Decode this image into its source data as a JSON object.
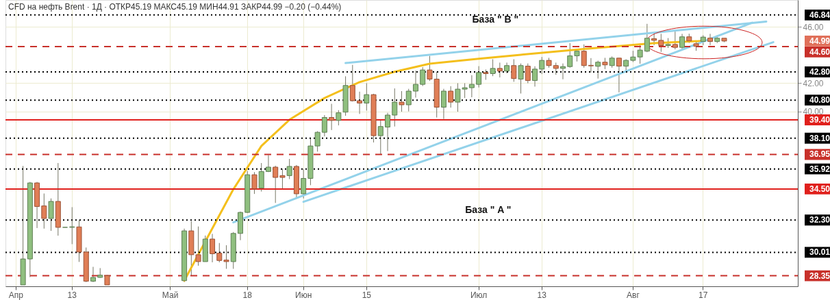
{
  "chart_data": {
    "type": "candlestick",
    "title": "CFD на нефть Brent · 1Д · ОТКР45.19 МАКС45.19 МИН44.91 ЗАКР44.99 −0.20 (−0.44%)",
    "categories": [
      "Апр",
      null,
      null,
      null,
      null,
      null,
      null,
      null,
      "13",
      null,
      null,
      null,
      null,
      null,
      null,
      null,
      null,
      null,
      null,
      null,
      null,
      null,
      "Май",
      null,
      null,
      null,
      null,
      null,
      null,
      null,
      null,
      null,
      null,
      "18",
      null,
      null,
      null,
      null,
      null,
      null,
      null,
      "Июн",
      null,
      null,
      null,
      null,
      null,
      null,
      null,
      null,
      "15",
      null,
      null,
      null,
      null,
      null,
      null,
      null,
      null,
      null,
      null,
      null,
      null,
      null,
      null,
      null,
      "Июл",
      null,
      null,
      null,
      null,
      null,
      null,
      null,
      null,
      "13",
      null,
      null,
      null,
      null,
      null,
      null,
      null,
      null,
      null,
      null,
      null,
      null,
      "Авг",
      null,
      null,
      null,
      null,
      null,
      null,
      null,
      null,
      null,
      "17",
      null,
      null,
      null,
      null,
      null,
      null,
      null,
      null,
      null,
      null,
      null,
      null
    ],
    "ohlc": [
      null,
      [
        27.7,
        36.13,
        27.7,
        29.54
      ],
      [
        29.54,
        35.0,
        28.25,
        34.93
      ],
      [
        34.93,
        35.0,
        31.73,
        33.26
      ],
      [
        33.3,
        34.18,
        31.69,
        32.41
      ],
      [
        32.41,
        33.83,
        31.53,
        33.62
      ],
      [
        33.62,
        36.34,
        31.19,
        31.78
      ],
      [
        31.78,
        31.78,
        31.78,
        31.78
      ],
      [
        31.78,
        33.21,
        30.59,
        31.82
      ],
      [
        31.81,
        32.29,
        29.33,
        30.03
      ],
      [
        30.03,
        30.35,
        27.9,
        27.96
      ],
      [
        27.96,
        28.98,
        27.9,
        28.23
      ],
      [
        28.23,
        28.89,
        28.2,
        28.39
      ],
      [
        28.36,
        28.4,
        27.7,
        27.7
      ],
      null,
      null,
      null,
      null,
      null,
      null,
      null,
      null,
      null,
      null,
      [
        28.0,
        31.69,
        27.9,
        31.53
      ],
      [
        31.53,
        32.21,
        28.33,
        29.84
      ],
      [
        29.84,
        31.84,
        29.06,
        29.35
      ],
      [
        29.35,
        31.2,
        29.35,
        30.95
      ],
      [
        30.95,
        31.32,
        29.3,
        29.91
      ],
      [
        29.95,
        30.67,
        29.3,
        29.43
      ],
      [
        29.46,
        30.51,
        28.84,
        29.35
      ],
      [
        29.35,
        31.45,
        28.84,
        31.35
      ],
      [
        31.35,
        32.9,
        30.87,
        32.84
      ],
      [
        32.84,
        35.77,
        32.8,
        35.51
      ],
      [
        35.51,
        35.7,
        34.15,
        34.51
      ],
      [
        34.56,
        36.34,
        34.32,
        35.74
      ],
      [
        35.74,
        36.9,
        35.7,
        36.05
      ],
      [
        36.05,
        36.15,
        33.51,
        35.32
      ],
      [
        35.45,
        35.93,
        34.48,
        35.32
      ],
      [
        35.45,
        36.63,
        35.2,
        36.1
      ],
      [
        36.1,
        36.2,
        33.91,
        34.16
      ],
      [
        34.16,
        35.93,
        33.83,
        35.25
      ],
      [
        35.25,
        38.12,
        34.77,
        37.55
      ],
      [
        37.55,
        38.6,
        37.15,
        38.52
      ],
      [
        38.52,
        39.74,
        38.23,
        39.57
      ],
      [
        39.57,
        40.54,
        38.68,
        39.36
      ],
      [
        39.36,
        40.09,
        39.01,
        39.9
      ],
      [
        39.95,
        42.49,
        39.69,
        41.84
      ],
      [
        41.84,
        43.3,
        40.7,
        40.76
      ],
      [
        40.76,
        41.4,
        39.82,
        40.59
      ],
      [
        40.59,
        42.0,
        40.06,
        41.19
      ],
      [
        41.19,
        41.25,
        37.8,
        38.28
      ],
      [
        38.28,
        39.41,
        36.95,
        38.93
      ],
      [
        38.89,
        39.9,
        37.19,
        39.74
      ],
      [
        39.74,
        41.63,
        38.93,
        40.66
      ],
      [
        40.66,
        41.44,
        39.98,
        40.47
      ],
      [
        40.47,
        41.6,
        40.0,
        41.44
      ],
      [
        41.44,
        42.89,
        40.98,
        41.92
      ],
      [
        41.92,
        43.14,
        41.8,
        42.94
      ],
      [
        42.94,
        43.94,
        42.16,
        42.29
      ],
      [
        42.29,
        42.81,
        39.57,
        40.3
      ],
      [
        40.3,
        41.6,
        39.46,
        41.44
      ],
      [
        41.44,
        41.79,
        40.27,
        40.66
      ],
      [
        40.66,
        42.0,
        39.98,
        41.58
      ],
      [
        41.58,
        42.0,
        40.95,
        41.68
      ],
      [
        41.68,
        42.57,
        41.0,
        41.92
      ],
      [
        41.92,
        43.21,
        41.7,
        42.76
      ],
      [
        42.76,
        42.97,
        42.24,
        42.68
      ],
      [
        42.68,
        43.7,
        42.5,
        43.05
      ],
      [
        43.05,
        43.46,
        42.41,
        42.86
      ],
      [
        42.86,
        43.46,
        42.7,
        43.25
      ],
      [
        43.25,
        43.7,
        42.1,
        42.33
      ],
      [
        42.29,
        43.4,
        41.27,
        43.25
      ],
      [
        43.21,
        43.4,
        42.0,
        42.19
      ],
      [
        42.19,
        43.2,
        41.76,
        43.0
      ],
      [
        43.0,
        43.86,
        42.65,
        43.62
      ],
      [
        43.62,
        43.8,
        43.1,
        43.25
      ],
      [
        43.25,
        43.46,
        42.6,
        43.05
      ],
      [
        43.05,
        43.4,
        42.28,
        43.18
      ],
      [
        43.18,
        44.84,
        43.1,
        43.94
      ],
      [
        43.94,
        44.4,
        43.54,
        44.27
      ],
      [
        44.27,
        44.75,
        43.1,
        43.25
      ],
      [
        43.27,
        43.78,
        42.76,
        43.23
      ],
      [
        43.2,
        43.6,
        42.33,
        43.49
      ],
      [
        43.49,
        43.8,
        43.0,
        43.3
      ],
      [
        43.25,
        43.9,
        43.1,
        43.78
      ],
      [
        43.78,
        43.8,
        41.35,
        43.21
      ],
      [
        43.21,
        43.7,
        42.89,
        43.62
      ],
      [
        43.62,
        44.3,
        43.5,
        43.86
      ],
      [
        43.86,
        44.8,
        43.38,
        44.35
      ],
      [
        44.27,
        46.21,
        44.2,
        45.19
      ],
      [
        45.16,
        45.51,
        44.7,
        45.04
      ],
      [
        45.04,
        45.5,
        44.22,
        44.67
      ],
      [
        44.67,
        45.2,
        44.5,
        44.75
      ],
      [
        44.75,
        45.72,
        44.4,
        44.54
      ],
      [
        44.54,
        45.5,
        44.4,
        45.29
      ],
      [
        45.29,
        45.51,
        44.85,
        45.0
      ],
      [
        44.8,
        45.0,
        44.3,
        44.62
      ],
      [
        44.96,
        45.4,
        44.7,
        45.27
      ],
      [
        45.2,
        45.5,
        44.7,
        44.96
      ],
      [
        44.96,
        45.4,
        44.85,
        45.19
      ],
      [
        45.19,
        45.19,
        44.91,
        44.99
      ],
      null,
      null,
      null,
      null,
      null,
      null,
      null,
      null,
      null
    ],
    "series": [
      {
        "type": "line",
        "color": "#f4bf1c",
        "values": [
          null,
          null,
          null,
          null,
          null,
          null,
          null,
          null,
          null,
          null,
          null,
          null,
          null,
          null,
          null,
          null,
          null,
          null,
          null,
          null,
          null,
          null,
          null,
          null,
          28.0,
          null,
          null,
          null,
          null,
          null,
          null,
          34.48,
          null,
          null,
          null,
          37.55,
          null,
          null,
          null,
          39.41,
          null,
          null,
          null,
          null,
          40.95,
          null,
          null,
          null,
          null,
          42.08,
          null,
          null,
          null,
          null,
          42.81,
          null,
          null,
          null,
          null,
          43.38,
          null,
          null,
          null,
          null,
          null,
          null,
          43.73,
          null,
          null,
          null,
          null,
          null,
          44.02,
          null,
          null,
          null,
          null,
          null,
          null,
          null,
          null,
          44.43,
          null,
          null,
          null,
          null,
          null,
          null,
          null,
          null,
          null,
          44.84,
          null,
          null,
          null,
          null,
          null,
          null,
          45.0,
          null,
          null,
          null,
          null,
          null,
          null,
          null,
          null,
          null,
          null,
          null,
          null
        ]
      },
      {
        "type": "line",
        "color": "#93d2ea",
        "values": [
          null,
          null,
          null,
          null,
          null,
          null,
          null,
          null,
          null,
          null,
          null,
          null,
          null,
          null,
          null,
          null,
          null,
          null,
          null,
          null,
          null,
          null,
          null,
          null,
          null,
          null,
          null,
          null,
          null,
          null,
          null,
          32.13,
          null,
          null,
          null,
          null,
          null,
          null,
          null,
          null,
          null,
          null,
          null,
          null,
          null,
          null,
          null,
          null,
          null,
          null,
          null,
          null,
          null,
          null,
          null,
          null,
          null,
          null,
          null,
          null,
          null,
          null,
          null,
          null,
          null,
          null,
          null,
          null,
          null,
          null,
          null,
          null,
          null,
          null,
          null,
          null,
          null,
          null,
          null,
          null,
          null,
          null,
          null,
          null,
          null,
          null,
          null,
          null,
          null,
          null,
          null,
          null,
          null,
          null,
          null,
          null,
          null,
          null,
          null,
          null,
          null,
          null,
          null,
          null,
          null,
          46.29,
          null,
          null,
          null,
          null,
          null
        ]
      },
      {
        "type": "line",
        "color": "#93d2ea",
        "values": [
          null,
          null,
          null,
          null,
          null,
          null,
          null,
          null,
          null,
          null,
          null,
          null,
          null,
          null,
          null,
          null,
          null,
          null,
          null,
          null,
          null,
          null,
          null,
          null,
          null,
          null,
          null,
          null,
          null,
          null,
          null,
          null,
          null,
          null,
          null,
          null,
          null,
          null,
          null,
          null,
          null,
          33.59,
          null,
          null,
          null,
          null,
          null,
          null,
          null,
          null,
          null,
          null,
          null,
          null,
          null,
          null,
          null,
          null,
          null,
          null,
          null,
          null,
          null,
          null,
          null,
          null,
          null,
          null,
          null,
          null,
          null,
          null,
          null,
          null,
          null,
          null,
          null,
          null,
          null,
          null,
          null,
          null,
          null,
          null,
          null,
          null,
          null,
          null,
          null,
          null,
          null,
          null,
          null,
          null,
          null,
          null,
          null,
          null,
          null,
          null,
          null,
          null,
          null,
          null,
          null,
          null,
          null,
          null,
          44.91,
          null,
          null
        ]
      },
      {
        "type": "line",
        "color": "#93d2ea",
        "values": [
          null,
          null,
          null,
          null,
          null,
          null,
          null,
          null,
          null,
          null,
          null,
          null,
          null,
          null,
          null,
          null,
          null,
          null,
          null,
          null,
          null,
          null,
          null,
          null,
          null,
          null,
          null,
          null,
          null,
          null,
          null,
          null,
          null,
          null,
          null,
          null,
          null,
          null,
          null,
          null,
          null,
          null,
          null,
          null,
          null,
          null,
          null,
          43.43,
          null,
          null,
          null,
          null,
          null,
          null,
          null,
          null,
          null,
          null,
          null,
          null,
          null,
          null,
          null,
          null,
          null,
          null,
          null,
          null,
          null,
          null,
          null,
          null,
          null,
          null,
          null,
          null,
          null,
          null,
          null,
          null,
          null,
          null,
          null,
          null,
          null,
          null,
          null,
          null,
          null,
          null,
          null,
          null,
          null,
          null,
          null,
          null,
          null,
          null,
          null,
          null,
          null,
          null,
          null,
          null,
          null,
          null,
          null,
          46.37,
          null,
          null,
          null
        ]
      }
    ],
    "ylim": [
      27.6,
      47.9
    ],
    "yticks": [
      {
        "value": 40,
        "label": "40.00"
      },
      {
        "value": 42,
        "label": "42.00"
      },
      {
        "value": 46,
        "label": "46.00"
      }
    ],
    "grid": true,
    "ref_lines": [
      {
        "axis": "y",
        "value": 46.84,
        "label": "46.84",
        "color": "#000000",
        "line_style": "dotted"
      },
      {
        "axis": "y",
        "value": 44.6,
        "label": "44.60",
        "color": "#c8302a",
        "line_style": "dashed"
      },
      {
        "axis": "y",
        "value": 42.8,
        "label": "42.80",
        "color": "#000000",
        "line_style": "dotted"
      },
      {
        "axis": "y",
        "value": 40.8,
        "label": "40.80",
        "color": "#000000",
        "line_style": "dotted"
      },
      {
        "axis": "y",
        "value": 39.4,
        "label": "39.40",
        "color": "#e0201c",
        "line_style": "solid"
      },
      {
        "axis": "y",
        "value": 38.1,
        "label": "38.10",
        "color": "#000000",
        "line_style": "dotted"
      },
      {
        "axis": "y",
        "value": 36.95,
        "label": "36.95",
        "color": "#c8302a",
        "line_style": "dashed"
      },
      {
        "axis": "y",
        "value": 35.92,
        "label": "35.92",
        "color": "#000000",
        "line_style": "dotted"
      },
      {
        "axis": "y",
        "value": 34.5,
        "label": "34.50",
        "color": "#e0201c",
        "line_style": "solid"
      },
      {
        "axis": "y",
        "value": 32.3,
        "label": "32.30",
        "color": "#000000",
        "line_style": "dotted"
      },
      {
        "axis": "y",
        "value": 30.01,
        "label": "30.01",
        "color": "#000000",
        "line_style": "dotted"
      },
      {
        "axis": "y",
        "value": 28.35,
        "label": "28.35",
        "color": "#c8302a",
        "line_style": "dashed"
      }
    ],
    "annotations": [
      "44.99",
      "База \" B \"",
      "База \" A \""
    ]
  }
}
